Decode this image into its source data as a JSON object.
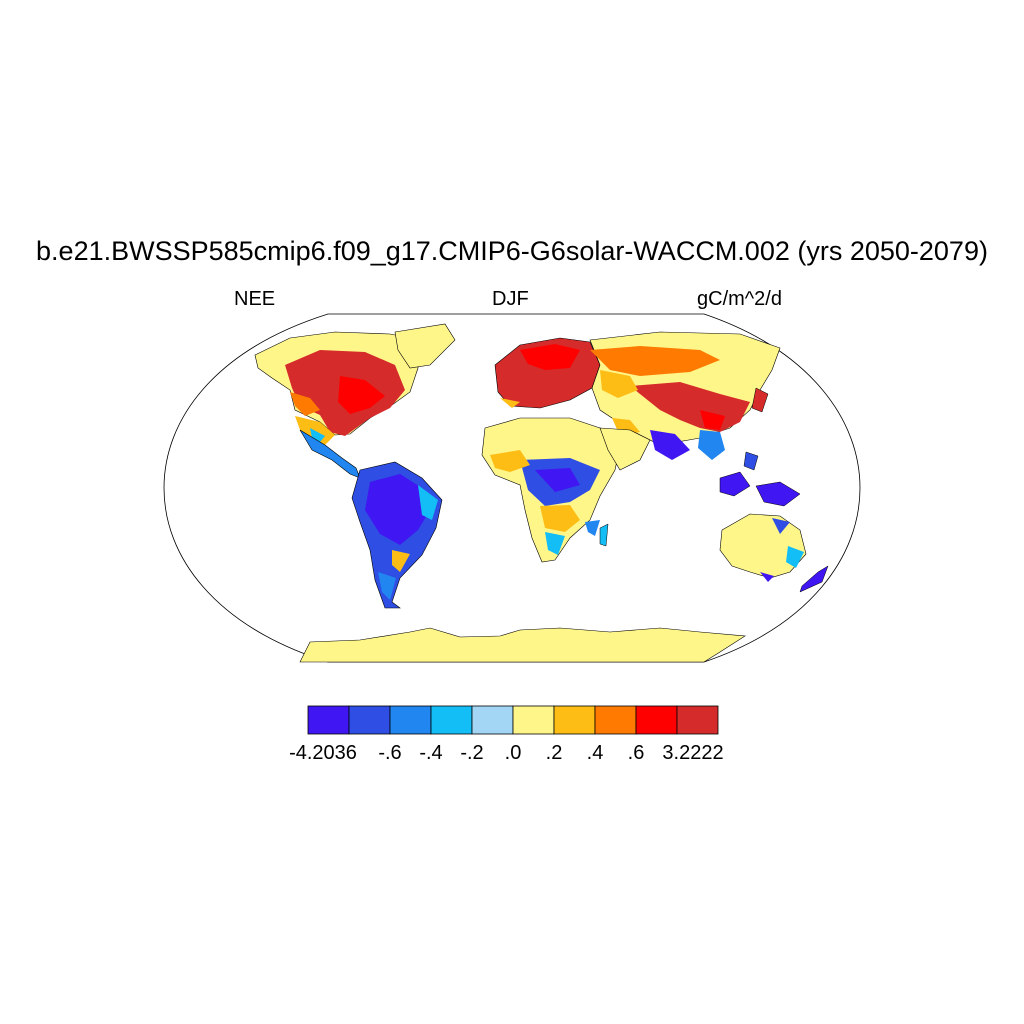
{
  "title": "b.e21.BWSSP585cmip6.f09_g17.CMIP6-G6solar-WACCM.002 (yrs 2050-2079)",
  "variable": "NEE",
  "season": "DJF",
  "units": "gC/m^2/d",
  "colorbar": {
    "colors": [
      "#4016f2",
      "#2f4ee3",
      "#2186f0",
      "#13bdf5",
      "#a3d6f5",
      "#fff68a",
      "#fdbd15",
      "#ff7a00",
      "#ff0000",
      "#d62b2b"
    ],
    "labels": [
      "-4.2036",
      "-.6",
      "-.4",
      "-.2",
      ".0",
      ".2",
      ".4",
      ".6",
      "3.2222"
    ]
  },
  "colors": {
    "ocean": "#ffffff",
    "coastline": "#000000",
    "land_default": "#fff68a"
  }
}
